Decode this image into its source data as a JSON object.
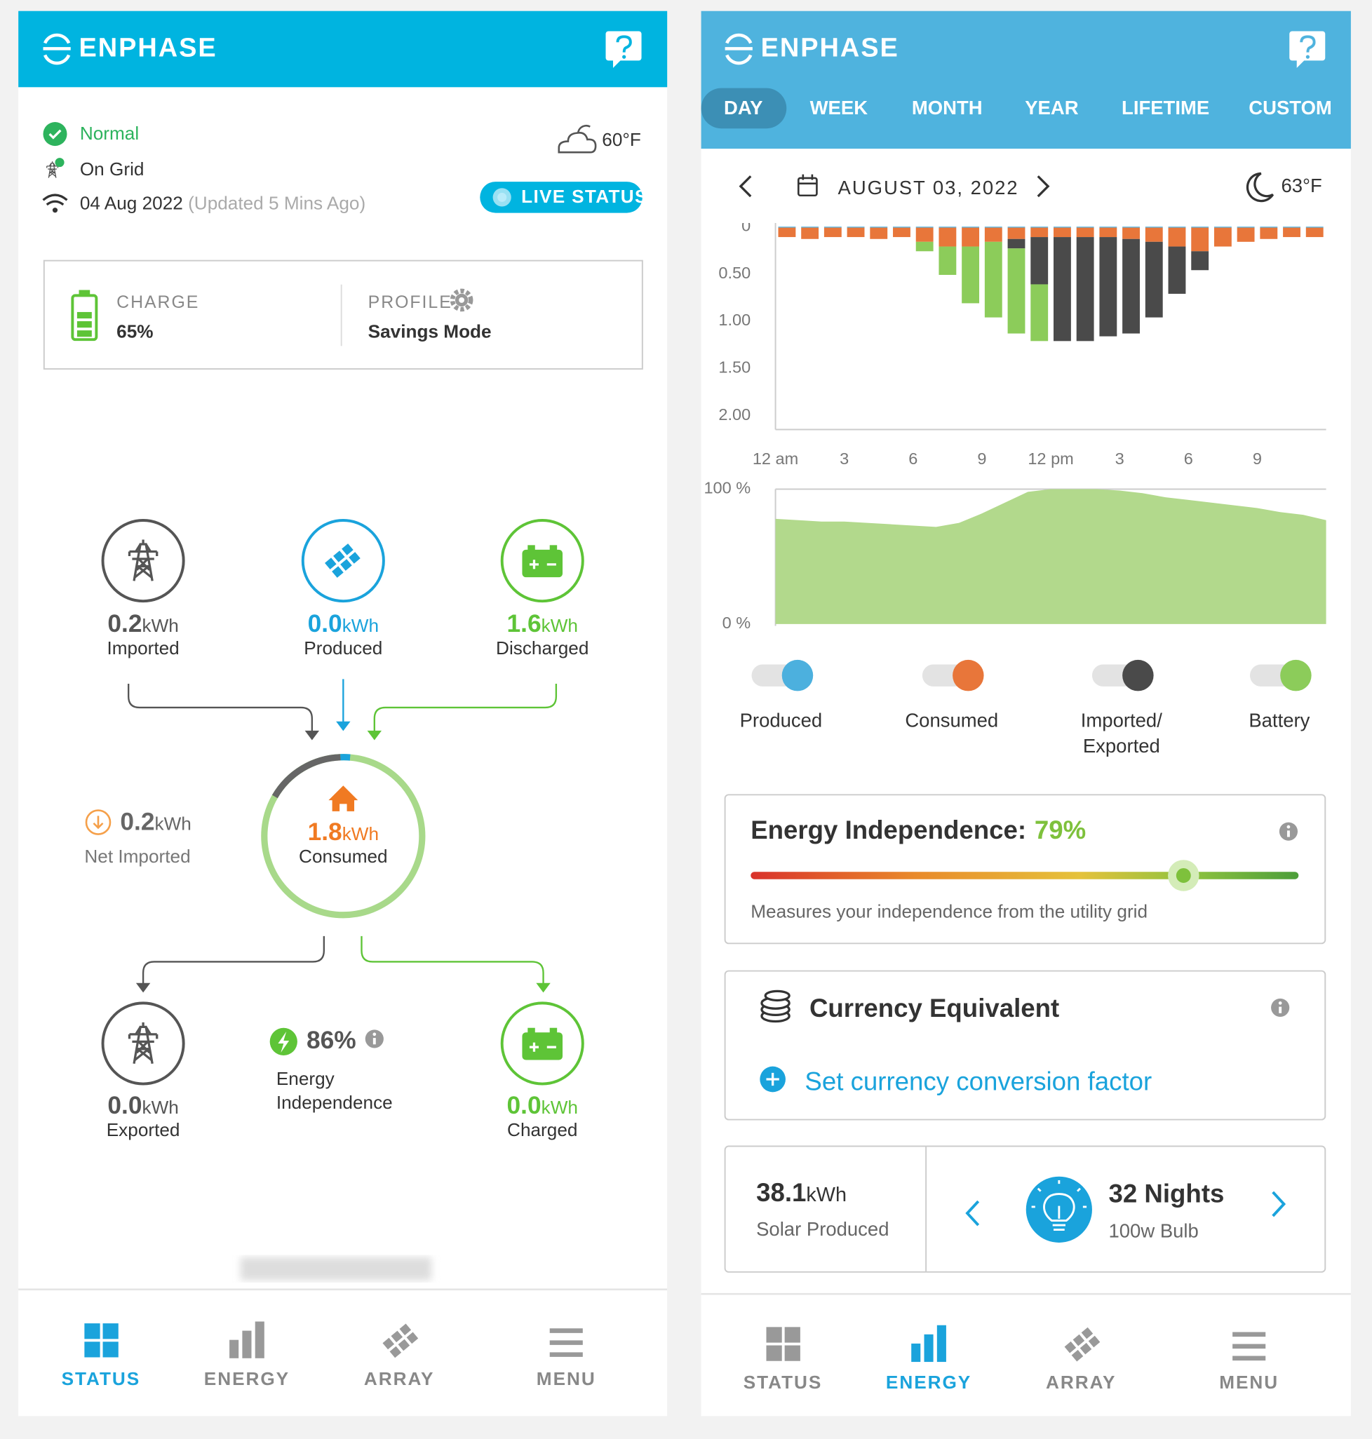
{
  "left": {
    "brand": "ENPHASE",
    "status": {
      "state": "Normal",
      "grid": "On Grid",
      "date": "04 Aug 2022",
      "updated": "(Updated 5 Mins Ago)",
      "weather": "60°F",
      "live": "LIVE STATUS"
    },
    "battery": {
      "charge_label": "CHARGE",
      "charge": "65%",
      "profile_label": "PROFILE",
      "profile": "Savings Mode"
    },
    "flows": {
      "imported": {
        "value": "0.2",
        "unit": "kWh",
        "label": "Imported"
      },
      "produced": {
        "value": "0.0",
        "unit": "kWh",
        "label": "Produced"
      },
      "discharged": {
        "value": "1.6",
        "unit": "kWh",
        "label": "Discharged"
      },
      "net": {
        "value": "0.2",
        "unit": "kWh",
        "label": "Net Imported"
      },
      "consumed": {
        "value": "1.8",
        "unit": "kWh",
        "label": "Consumed"
      },
      "exported": {
        "value": "0.0",
        "unit": "kWh",
        "label": "Exported"
      },
      "charged": {
        "value": "0.0",
        "unit": "kWh",
        "label": "Charged"
      },
      "independence": {
        "value": "86%",
        "label": "Energy Independence"
      }
    },
    "nav": [
      "STATUS",
      "ENERGY",
      "ARRAY",
      "MENU"
    ]
  },
  "right": {
    "brand": "ENPHASE",
    "tabs": [
      "DAY",
      "WEEK",
      "MONTH",
      "YEAR",
      "LIFETIME",
      "CUSTOM"
    ],
    "date": "AUGUST 03, 2022",
    "weather": "63°F",
    "independence": {
      "title": "Energy Independence:",
      "value": 79,
      "value_label": "79%",
      "note": "Measures your independence from the utility grid"
    },
    "currency": {
      "title": "Currency Equivalent",
      "action": "Set currency conversion factor"
    },
    "solar": {
      "value": "38.1",
      "unit": "kWh",
      "label": "Solar Produced",
      "equiv": "32 Nights",
      "equiv_label": "100w Bulb"
    },
    "nav": [
      "STATUS",
      "ENERGY",
      "ARRAY",
      "MENU"
    ]
  },
  "chart_data": [
    {
      "type": "bar",
      "stacked": true,
      "y_reversed": true,
      "grid": false,
      "x": [
        0,
        1,
        2,
        3,
        4,
        5,
        6,
        7,
        8,
        9,
        10,
        11,
        12,
        13,
        14,
        15,
        16,
        17,
        18,
        19,
        20,
        21,
        22,
        23
      ],
      "xlim": [
        0,
        24
      ],
      "xticks": [
        {
          "value": 0,
          "label": "12 am"
        },
        3,
        6,
        9,
        {
          "value": 12,
          "label": "12 pm"
        },
        {
          "value": 15,
          "label": "3"
        },
        {
          "value": 18,
          "label": "6"
        },
        {
          "value": 21,
          "label": "9"
        }
      ],
      "ylim": [
        0,
        2
      ],
      "yticks": [
        0,
        {
          "value": 0.5,
          "label": "0.50"
        },
        {
          "value": 1,
          "label": "1.00"
        },
        {
          "value": 1.5,
          "label": "1.50"
        },
        {
          "value": 2,
          "label": "2.00"
        }
      ],
      "series": [
        {
          "name": "Produced",
          "color": "#4cb0de",
          "values": [
            0.01,
            0.01,
            0.01,
            0.01,
            0.01,
            0.01,
            0.01,
            0.01,
            0.01,
            0.01,
            0.01,
            0.01,
            0.01,
            0.01,
            0.01,
            0.01,
            0.01,
            0.01,
            0.01,
            0.01,
            0.01,
            0.01,
            0.01,
            0.01
          ]
        },
        {
          "name": "Consumed",
          "color": "#e8763a",
          "values": [
            0.1,
            0.12,
            0.1,
            0.1,
            0.12,
            0.1,
            0.15,
            0.2,
            0.2,
            0.15,
            0.12,
            0.1,
            0.1,
            0.1,
            0.1,
            0.12,
            0.15,
            0.2,
            0.25,
            0.2,
            0.15,
            0.12,
            0.1,
            0.1
          ]
        },
        {
          "name": "Imported/ Exported",
          "color": "#4a4a4a",
          "values": [
            0,
            0,
            0,
            0,
            0,
            0,
            0,
            0,
            0,
            0,
            0.1,
            0.5,
            1.1,
            1.1,
            1.05,
            1.0,
            0.8,
            0.5,
            0.2,
            0,
            0,
            0,
            0,
            0
          ]
        },
        {
          "name": "Battery",
          "color": "#8ccc5a",
          "values": [
            0,
            0,
            0,
            0,
            0,
            0,
            0.1,
            0.3,
            0.6,
            0.8,
            0.9,
            0.6,
            0,
            0,
            0,
            0,
            0,
            0,
            0,
            0,
            0,
            0,
            0,
            0
          ]
        }
      ]
    },
    {
      "type": "area",
      "color": "#b2d98c",
      "x": [
        0,
        1,
        2,
        3,
        4,
        5,
        6,
        7,
        8,
        9,
        10,
        11,
        12,
        13,
        14,
        15,
        16,
        17,
        18,
        19,
        20,
        21,
        22,
        23,
        24
      ],
      "xlim": [
        0,
        24
      ],
      "ylim": [
        0,
        100
      ],
      "yticks": [
        {
          "value": 0,
          "label": "0 %"
        },
        {
          "value": 100,
          "label": "100 %"
        }
      ],
      "values": [
        78,
        77,
        76,
        76,
        75,
        74,
        73,
        72,
        75,
        82,
        90,
        98,
        100,
        100,
        100,
        99,
        97,
        94,
        92,
        90,
        88,
        86,
        83,
        81,
        77
      ]
    }
  ]
}
